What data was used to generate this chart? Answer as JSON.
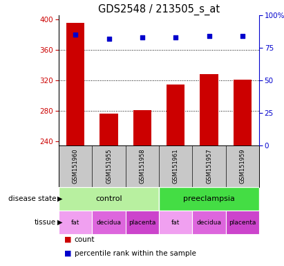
{
  "title": "GDS2548 / 213505_s_at",
  "samples": [
    "GSM151960",
    "GSM151955",
    "GSM151958",
    "GSM151961",
    "GSM151957",
    "GSM151959"
  ],
  "bar_values": [
    395,
    277,
    281,
    315,
    328,
    321
  ],
  "percentile_values": [
    85,
    82,
    83,
    83,
    84,
    84
  ],
  "bar_bottom": 235,
  "bar_color": "#cc0000",
  "dot_color": "#0000cc",
  "ylim_left": [
    235,
    405
  ],
  "ylim_right": [
    0,
    100
  ],
  "yticks_left": [
    240,
    280,
    320,
    360,
    400
  ],
  "yticks_right": [
    0,
    25,
    50,
    75,
    100
  ],
  "grid_values": [
    280,
    320,
    360
  ],
  "disease_state_colors": [
    "#b8f0a0",
    "#44dd44"
  ],
  "tissue_colors": [
    "#f0a0f0",
    "#dd66dd",
    "#cc44cc",
    "#f0a0f0",
    "#dd66dd",
    "#cc44cc"
  ],
  "tissue_labels": [
    "fat",
    "decidua",
    "placenta",
    "fat",
    "decidua",
    "placenta"
  ],
  "legend_count_color": "#cc0000",
  "legend_pct_color": "#0000cc",
  "left_axis_color": "#cc0000",
  "right_axis_color": "#0000cc",
  "background_color": "#ffffff",
  "sample_bg_color": "#c8c8c8",
  "tick_label_fontsize": 7.5,
  "title_fontsize": 10.5
}
